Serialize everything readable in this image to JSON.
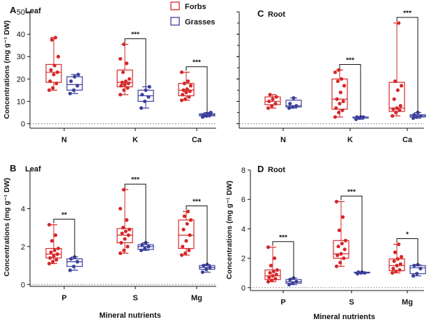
{
  "colors": {
    "forbs": "#d62728",
    "grasses": "#3b3f9a",
    "axis": "#111111",
    "zero": "#999999"
  },
  "legend": [
    {
      "key": "forbs",
      "label": "Forbs"
    },
    {
      "key": "grasses",
      "label": "Grasses"
    }
  ],
  "chart_data": [
    {
      "type": "box",
      "id": "A",
      "label": "A",
      "title": "Leaf",
      "ylabel": "Concentrations (mg g⁻¹ DW)",
      "xlabel": "",
      "ylim": [
        -2,
        50
      ],
      "yticks": [
        0,
        10,
        20,
        30,
        40,
        50
      ],
      "ytick_labels": true,
      "categories": [
        "N",
        "K",
        "Ca"
      ],
      "groups": [
        {
          "forbs": {
            "min": 15,
            "q1": 18.5,
            "median": 23,
            "q3": 26.5,
            "max": 38.5,
            "points": [
              15,
              16,
              18,
              19,
              22,
              23,
              24,
              26,
              30,
              37.5,
              38.5
            ]
          },
          "grasses": {
            "min": 13.5,
            "q1": 15,
            "median": 17.5,
            "q3": 21,
            "max": 22,
            "points": [
              13.5,
              15,
              17,
              19,
              21,
              22
            ]
          },
          "sig": ""
        },
        {
          "forbs": {
            "min": 13,
            "q1": 16.5,
            "median": 18.5,
            "q3": 24,
            "max": 35.5,
            "points": [
              13,
              15,
              16,
              17,
              17.5,
              18,
              18.5,
              19,
              20,
              23,
              27,
              29,
              35.5
            ]
          },
          "grasses": {
            "min": 7,
            "q1": 10,
            "median": 12.5,
            "q3": 15,
            "max": 16.5,
            "points": [
              7,
              10,
              12,
              13,
              15,
              16.5
            ]
          },
          "sig": "***"
        },
        {
          "forbs": {
            "min": 10.5,
            "q1": 12.5,
            "median": 15,
            "q3": 18,
            "max": 23,
            "points": [
              10.5,
              11,
              12,
              13,
              14,
              14.5,
              15,
              15.5,
              17,
              18,
              19,
              23
            ]
          },
          "grasses": {
            "min": 3,
            "q1": 3.5,
            "median": 4,
            "q3": 4.5,
            "max": 5,
            "points": [
              3,
              3.5,
              4,
              4,
              4.5,
              5
            ]
          },
          "sig": "***"
        }
      ]
    },
    {
      "type": "box",
      "id": "C",
      "label": "C",
      "title": "Root",
      "ylabel": "",
      "xlabel": "",
      "ylim": [
        -2,
        50
      ],
      "yticks": [
        0,
        10,
        20,
        30,
        40,
        50
      ],
      "ytick_labels": false,
      "categories": [
        "N",
        "K",
        "Ca"
      ],
      "groups": [
        {
          "forbs": {
            "min": 7,
            "q1": 8.5,
            "median": 10,
            "q3": 12,
            "max": 13,
            "points": [
              7,
              8,
              9,
              10,
              11,
              12,
              13
            ]
          },
          "grasses": {
            "min": 7,
            "q1": 7.5,
            "median": 8,
            "q3": 10.5,
            "max": 11.5,
            "points": [
              7,
              7.5,
              8,
              9,
              11.5
            ]
          },
          "sig": ""
        },
        {
          "forbs": {
            "min": 3,
            "q1": 6.5,
            "median": 11,
            "q3": 20,
            "max": 24,
            "points": [
              3,
              5,
              6,
              7,
              9,
              10,
              11,
              14,
              17,
              19,
              20,
              23,
              24
            ]
          },
          "grasses": {
            "min": 2,
            "q1": 2.5,
            "median": 3,
            "q3": 3,
            "max": 3,
            "points": [
              2,
              2.5,
              3,
              3,
              3
            ]
          },
          "sig": "***"
        },
        {
          "forbs": {
            "min": 3.5,
            "q1": 5.5,
            "median": 7,
            "q3": 18.5,
            "max": 45,
            "points": [
              3.5,
              5,
              6,
              6.5,
              7,
              8,
              11,
              15,
              17,
              19,
              45
            ]
          },
          "grasses": {
            "min": 2.5,
            "q1": 3,
            "median": 3.5,
            "q3": 4,
            "max": 5,
            "points": [
              2.5,
              3,
              3.5,
              4,
              5
            ]
          },
          "sig": "***"
        }
      ]
    },
    {
      "type": "box",
      "id": "B",
      "label": "B",
      "title": "Leaf",
      "ylabel": "Concentrations (mg g⁻¹ DW)",
      "xlabel": "Mineral nutrients",
      "ylim": [
        -0.1,
        6
      ],
      "yticks": [
        0,
        2,
        4
      ],
      "ytick_labels": true,
      "categories": [
        "P",
        "S",
        "Mg"
      ],
      "groups": [
        {
          "forbs": {
            "min": 1.1,
            "q1": 1.4,
            "median": 1.6,
            "q3": 1.9,
            "max": 3.15,
            "points": [
              1.1,
              1.2,
              1.3,
              1.4,
              1.5,
              1.6,
              1.7,
              1.8,
              1.9,
              2.3,
              2.6,
              3.15
            ]
          },
          "grasses": {
            "min": 0.75,
            "q1": 0.95,
            "median": 1.2,
            "q3": 1.35,
            "max": 1.45,
            "points": [
              0.75,
              0.95,
              1.2,
              1.35,
              1.45
            ]
          },
          "sig": "**"
        },
        {
          "forbs": {
            "min": 1.65,
            "q1": 2.2,
            "median": 2.6,
            "q3": 2.95,
            "max": 5.0,
            "points": [
              1.65,
              1.8,
              2.0,
              2.2,
              2.4,
              2.6,
              2.7,
              2.8,
              2.9,
              3.0,
              3.4,
              4.0,
              5.0
            ]
          },
          "grasses": {
            "min": 1.8,
            "q1": 1.85,
            "median": 2.0,
            "q3": 2.1,
            "max": 2.2,
            "points": [
              1.8,
              1.9,
              2.0,
              2.1,
              2.2
            ]
          },
          "sig": "***"
        },
        {
          "forbs": {
            "min": 1.55,
            "q1": 1.9,
            "median": 2.6,
            "q3": 3.4,
            "max": 3.85,
            "points": [
              1.55,
              1.65,
              1.8,
              2.0,
              2.3,
              2.6,
              2.9,
              3.2,
              3.4,
              3.6,
              3.85
            ]
          },
          "grasses": {
            "min": 0.65,
            "q1": 0.8,
            "median": 0.9,
            "q3": 1.0,
            "max": 1.05,
            "points": [
              0.65,
              0.8,
              0.9,
              1.0,
              1.05
            ]
          },
          "sig": "***"
        }
      ]
    },
    {
      "type": "box",
      "id": "D",
      "label": "D",
      "title": "Root",
      "ylabel": "Concentrations (mg g⁻¹ DW)",
      "xlabel": "Mineral nutrients",
      "ylim": [
        -0.2,
        8
      ],
      "yticks": [
        0,
        2,
        4,
        6,
        8
      ],
      "ytick_labels": true,
      "categories": [
        "P",
        "S",
        "Mg"
      ],
      "groups": [
        {
          "forbs": {
            "min": 0.4,
            "q1": 0.55,
            "median": 0.8,
            "q3": 1.2,
            "max": 2.75,
            "points": [
              0.4,
              0.5,
              0.6,
              0.7,
              0.8,
              0.9,
              1.0,
              1.1,
              1.2,
              1.5,
              2.0,
              2.75
            ]
          },
          "grasses": {
            "min": 0.2,
            "q1": 0.3,
            "median": 0.4,
            "q3": 0.55,
            "max": 0.65,
            "points": [
              0.2,
              0.3,
              0.4,
              0.55,
              0.65
            ]
          },
          "sig": "***"
        },
        {
          "forbs": {
            "min": 1.45,
            "q1": 2.0,
            "median": 2.3,
            "q3": 3.2,
            "max": 5.85,
            "points": [
              1.45,
              1.7,
              2.0,
              2.2,
              2.3,
              2.6,
              2.8,
              3.0,
              3.2,
              3.9,
              4.8,
              5.85
            ]
          },
          "grasses": {
            "min": 0.95,
            "q1": 1.0,
            "median": 1.0,
            "q3": 1.05,
            "max": 1.05,
            "points": [
              0.95,
              1.0,
              1.0,
              1.05,
              1.05
            ]
          },
          "sig": "***"
        },
        {
          "forbs": {
            "min": 1.0,
            "q1": 1.15,
            "median": 1.5,
            "q3": 1.95,
            "max": 2.95,
            "points": [
              1.0,
              1.1,
              1.2,
              1.3,
              1.5,
              1.6,
              1.8,
              1.95,
              2.1,
              2.4,
              2.95
            ]
          },
          "grasses": {
            "min": 0.8,
            "q1": 0.95,
            "median": 1.35,
            "q3": 1.5,
            "max": 1.55,
            "points": [
              0.8,
              0.95,
              1.3,
              1.5,
              1.55
            ]
          },
          "sig": "*"
        }
      ]
    }
  ]
}
